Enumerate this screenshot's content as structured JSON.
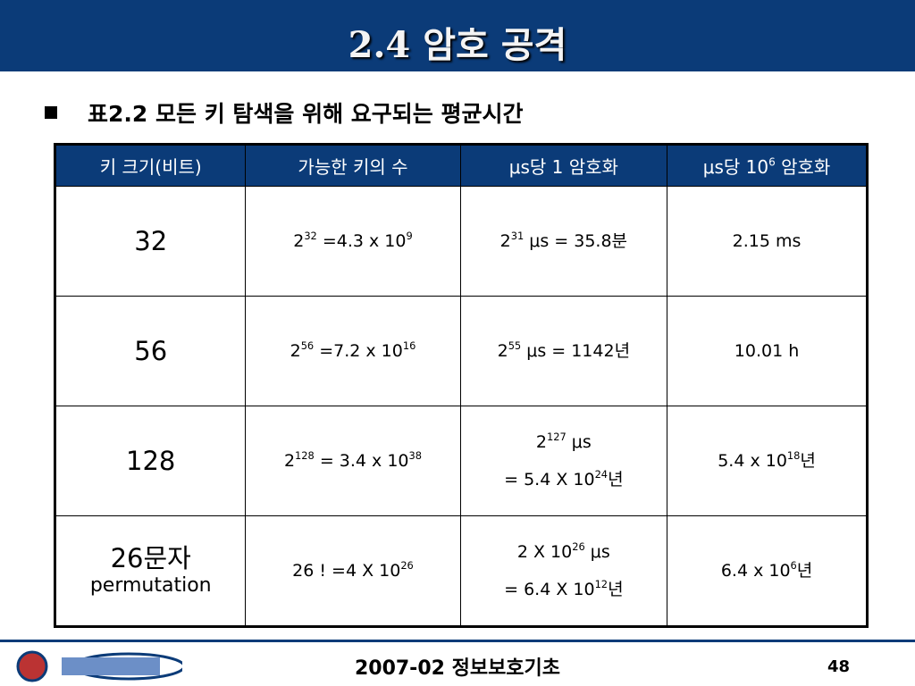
{
  "header": {
    "title": "2.4 암호 공격"
  },
  "bullet": "표2.2 모든 키 탐색을 위해 요구되는 평균시간",
  "table": {
    "header": [
      [
        [
          "키 크기(비트)"
        ]
      ],
      [
        [
          "가능한 키의 수"
        ]
      ],
      [
        [
          "μs당 1 암호화"
        ]
      ],
      [
        [
          "μs당 10",
          {
            "sup": "6"
          },
          " 암호화"
        ]
      ]
    ],
    "rows": [
      [
        [
          [
            "32"
          ]
        ],
        [
          [
            "2",
            {
              "sup": "32"
            },
            " =4.3 x 10",
            {
              "sup": "9"
            }
          ]
        ],
        [
          [
            "2",
            {
              "sup": "31"
            },
            " μs = 35.8분"
          ]
        ],
        [
          [
            "2.15 ms"
          ]
        ]
      ],
      [
        [
          [
            "56"
          ]
        ],
        [
          [
            "2",
            {
              "sup": "56"
            },
            " =7.2 x 10",
            {
              "sup": "16"
            }
          ]
        ],
        [
          [
            "2",
            {
              "sup": "55"
            },
            " μs = 1142년"
          ]
        ],
        [
          [
            "10.01 h"
          ]
        ]
      ],
      [
        [
          [
            "128"
          ]
        ],
        [
          [
            "2",
            {
              "sup": "128"
            },
            " = 3.4 x 10",
            {
              "sup": "38"
            }
          ]
        ],
        [
          [
            "2",
            {
              "sup": "127"
            },
            " μs"
          ],
          [
            "= 5.4 X 10",
            {
              "sup": "24"
            },
            "년"
          ]
        ],
        [
          [
            "5.4 x 10",
            {
              "sup": "18"
            },
            "년"
          ]
        ]
      ],
      [
        [
          [
            "26문자"
          ],
          [
            "permutation"
          ]
        ],
        [
          [
            "26 ! =4 X 10",
            {
              "sup": "26"
            }
          ]
        ],
        [
          [
            "2 X 10",
            {
              "sup": "26"
            },
            " μs"
          ],
          [
            "= 6.4 X 10",
            {
              "sup": "12"
            },
            "년"
          ]
        ],
        [
          [
            "6.4 x 10",
            {
              "sup": "6"
            },
            "년"
          ]
        ]
      ]
    ]
  },
  "footer": {
    "course": "2007-02 정보보호기초",
    "page": "48"
  }
}
